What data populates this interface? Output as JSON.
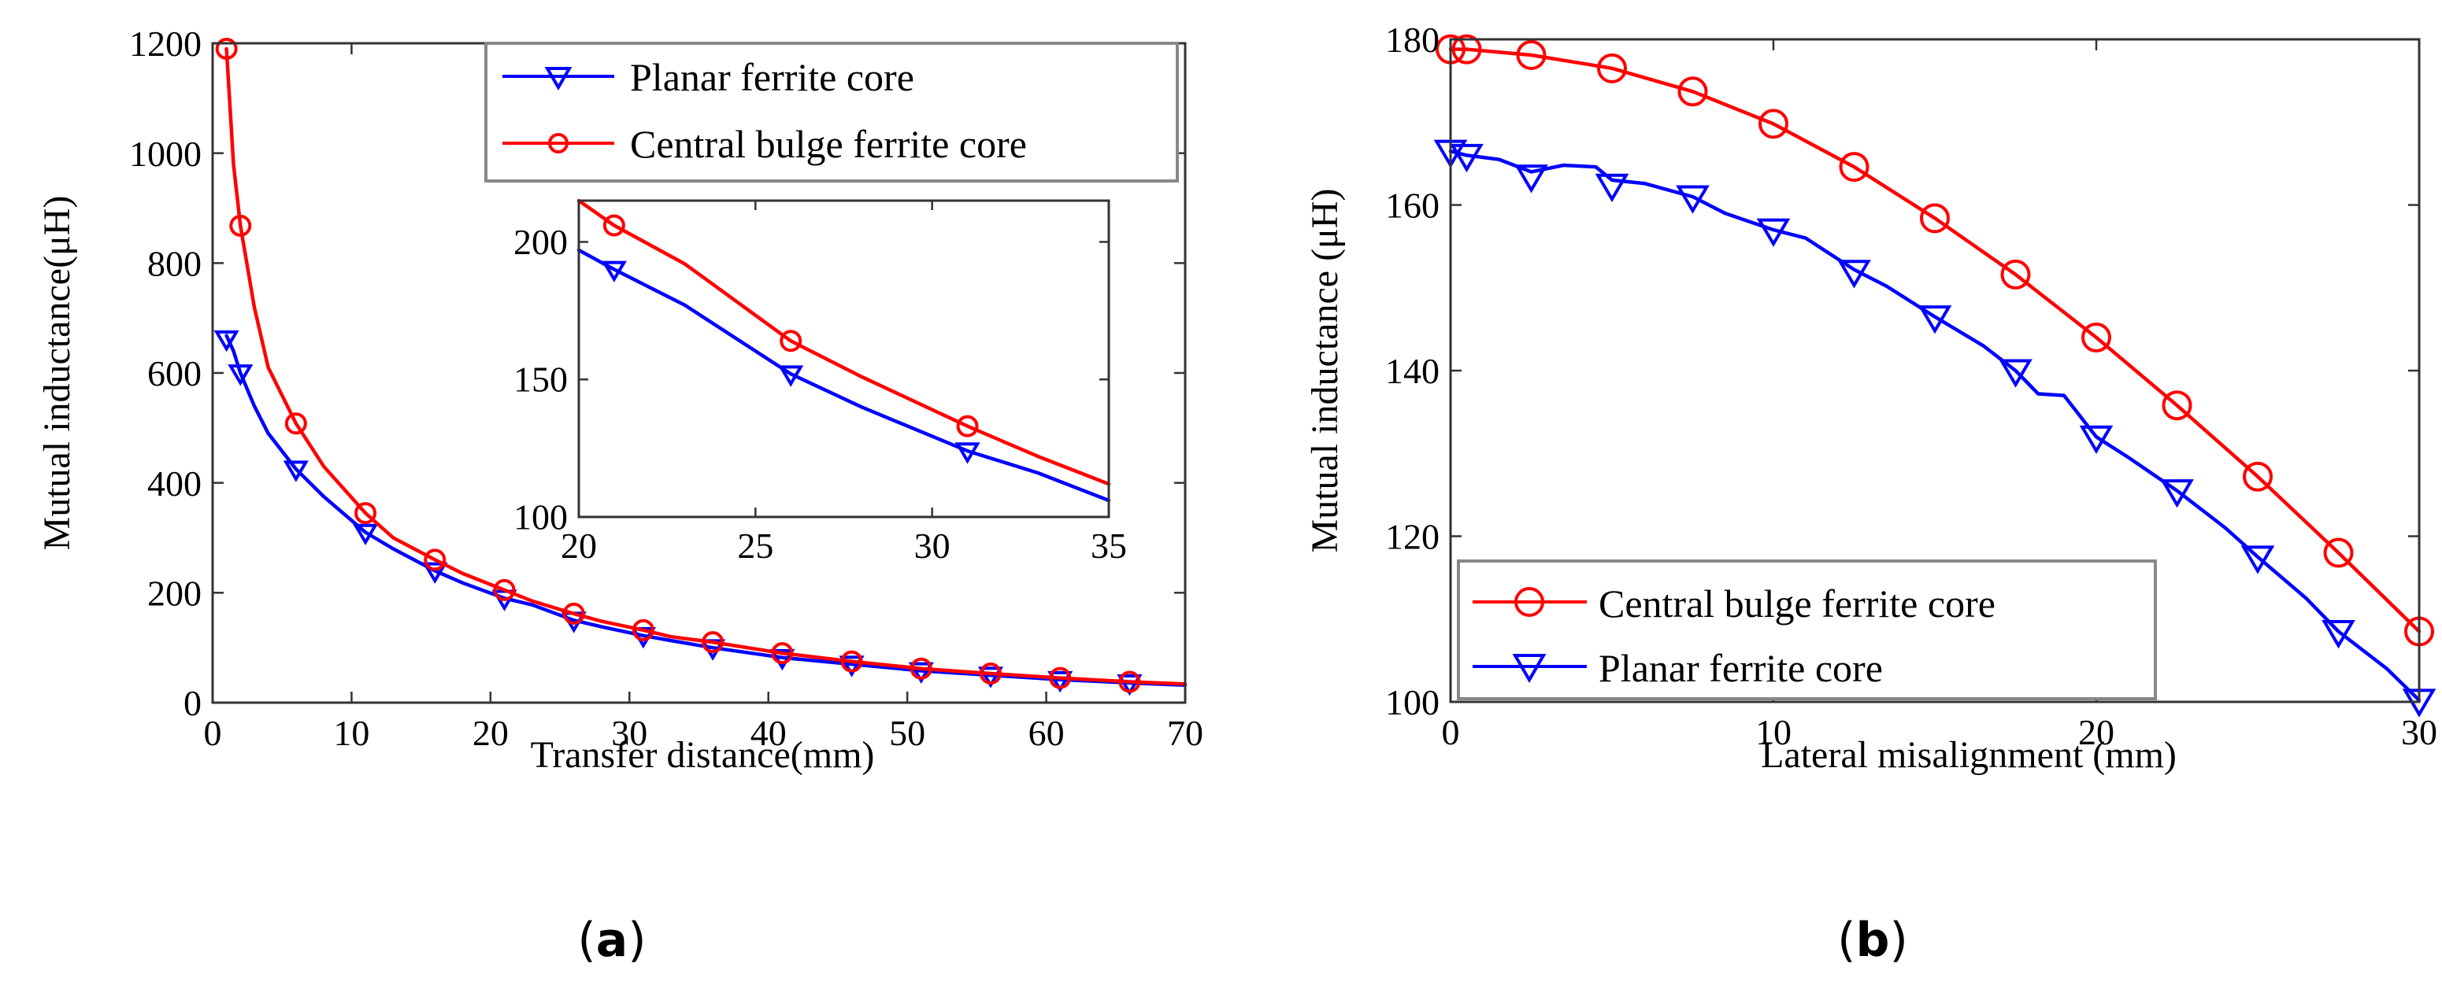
{
  "chart_data": [
    {
      "id": "a",
      "type": "line",
      "caption_letter": "a",
      "xlabel": "Transfer distance(mm)",
      "ylabel": "Mutual inductance(μH)",
      "xlim": [
        0,
        70
      ],
      "ylim": [
        0,
        1200
      ],
      "xticks": [
        0,
        10,
        20,
        30,
        40,
        50,
        60,
        70
      ],
      "yticks": [
        0,
        200,
        400,
        600,
        800,
        1000,
        1200
      ],
      "legend_position": "top-right",
      "series": [
        {
          "name": "Planar ferrite core",
          "color": "#0000ff",
          "marker": "triangle-down",
          "curve": [
            [
              1,
              668
            ],
            [
              1.5,
              640
            ],
            [
              2,
              600
            ],
            [
              3,
              540
            ],
            [
              4,
              490
            ],
            [
              6,
              425
            ],
            [
              8,
              375
            ],
            [
              11,
              310
            ],
            [
              13,
              280
            ],
            [
              16,
              240
            ],
            [
              18,
              218
            ],
            [
              21,
              190
            ],
            [
              23,
              178
            ],
            [
              26,
              150
            ],
            [
              28,
              138
            ],
            [
              31,
              122
            ],
            [
              33,
              113
            ],
            [
              36,
              100
            ],
            [
              41,
              82
            ],
            [
              46,
              70
            ],
            [
              51,
              58
            ],
            [
              56,
              50
            ],
            [
              61,
              42
            ],
            [
              66,
              36
            ],
            [
              70,
              32
            ]
          ],
          "markers": [
            [
              1,
              662
            ],
            [
              2,
              600
            ],
            [
              6,
              425
            ],
            [
              11,
              310
            ],
            [
              16,
              240
            ],
            [
              21,
              190
            ],
            [
              26,
              150
            ],
            [
              31,
              122
            ],
            [
              36,
              100
            ],
            [
              41,
              82
            ],
            [
              46,
              70
            ],
            [
              51,
              58
            ],
            [
              56,
              50
            ],
            [
              61,
              42
            ],
            [
              66,
              36
            ]
          ]
        },
        {
          "name": "Central bulge ferrite core",
          "color": "#ff0000",
          "marker": "circle",
          "curve": [
            [
              1,
              1190
            ],
            [
              1.5,
              980
            ],
            [
              2,
              868
            ],
            [
              3,
              720
            ],
            [
              4,
              610
            ],
            [
              6,
              508
            ],
            [
              8,
              430
            ],
            [
              11,
              345
            ],
            [
              13,
              300
            ],
            [
              16,
              260
            ],
            [
              18,
              235
            ],
            [
              21,
              205
            ],
            [
              23,
              185
            ],
            [
              26,
              162
            ],
            [
              28,
              148
            ],
            [
              31,
              132
            ],
            [
              33,
              120
            ],
            [
              36,
              110
            ],
            [
              41,
              90
            ],
            [
              46,
              75
            ],
            [
              51,
              62
            ],
            [
              56,
              53
            ],
            [
              61,
              45
            ],
            [
              66,
              38
            ],
            [
              70,
              34
            ]
          ],
          "markers": [
            [
              1,
              1190
            ],
            [
              2,
              868
            ],
            [
              6,
              508
            ],
            [
              11,
              345
            ],
            [
              16,
              260
            ],
            [
              21,
              205
            ],
            [
              26,
              162
            ],
            [
              31,
              132
            ],
            [
              36,
              110
            ],
            [
              41,
              90
            ],
            [
              46,
              75
            ],
            [
              51,
              62
            ],
            [
              56,
              53
            ],
            [
              61,
              45
            ],
            [
              66,
              38
            ]
          ]
        }
      ],
      "inset": {
        "xlim": [
          20,
          35
        ],
        "ylim": [
          100,
          215
        ],
        "xticks": [
          20,
          25,
          30,
          35
        ],
        "yticks": [
          100,
          150,
          200
        ],
        "series": [
          {
            "name": "Planar ferrite core",
            "color": "#0000ff",
            "marker": "triangle-down",
            "curve": [
              [
                20,
                197
              ],
              [
                21,
                190
              ],
              [
                23,
                177
              ],
              [
                26,
                152
              ],
              [
                28,
                140
              ],
              [
                31,
                124
              ],
              [
                33,
                116
              ],
              [
                35,
                106
              ]
            ],
            "markers": [
              [
                21,
                190
              ],
              [
                26,
                152
              ],
              [
                31,
                124
              ]
            ]
          },
          {
            "name": "Central bulge ferrite core",
            "color": "#ff0000",
            "marker": "circle",
            "curve": [
              [
                20,
                215
              ],
              [
                21,
                206
              ],
              [
                23,
                192
              ],
              [
                26,
                164
              ],
              [
                28,
                151
              ],
              [
                31,
                133
              ],
              [
                33,
                122
              ],
              [
                35,
                112
              ]
            ],
            "markers": [
              [
                21,
                206
              ],
              [
                26,
                164
              ],
              [
                31,
                133
              ]
            ]
          }
        ]
      }
    },
    {
      "id": "b",
      "type": "line",
      "caption_letter": "b",
      "xlabel": "Lateral misalignment (mm)",
      "ylabel": "Mutual inductance (μH)",
      "xlim": [
        0,
        30
      ],
      "ylim": [
        100,
        180
      ],
      "xticks": [
        0,
        10,
        20,
        30
      ],
      "yticks": [
        100,
        120,
        140,
        160,
        180
      ],
      "legend_position": "bottom-left",
      "series": [
        {
          "name": "Central bulge ferrite core",
          "color": "#ff0000",
          "marker": "circle",
          "curve": [
            [
              0,
              178.8
            ],
            [
              0.5,
              178.8
            ],
            [
              2.5,
              178.1
            ],
            [
              5,
              176.5
            ],
            [
              7.5,
              173.7
            ],
            [
              10,
              169.8
            ],
            [
              12.5,
              164.6
            ],
            [
              15,
              158.4
            ],
            [
              17.5,
              151.6
            ],
            [
              20,
              144
            ],
            [
              22.5,
              135.8
            ],
            [
              25,
              127.2
            ],
            [
              27.5,
              118
            ],
            [
              30,
              108.5
            ]
          ],
          "markers": [
            [
              0,
              178.8
            ],
            [
              0.5,
              178.8
            ],
            [
              2.5,
              178.1
            ],
            [
              5,
              176.5
            ],
            [
              7.5,
              173.7
            ],
            [
              10,
              169.8
            ],
            [
              12.5,
              164.6
            ],
            [
              15,
              158.4
            ],
            [
              17.5,
              151.6
            ],
            [
              20,
              144
            ],
            [
              22.5,
              135.8
            ],
            [
              25,
              127.2
            ],
            [
              27.5,
              118
            ],
            [
              30,
              108.5
            ]
          ]
        },
        {
          "name": "Planar ferrite core",
          "color": "#0000ff",
          "marker": "triangle-down",
          "curve": [
            [
              0,
              166.5
            ],
            [
              0.5,
              166
            ],
            [
              1.5,
              165.5
            ],
            [
              2.5,
              164
            ],
            [
              3.5,
              164.8
            ],
            [
              4.5,
              164.6
            ],
            [
              5,
              163
            ],
            [
              6,
              162.6
            ],
            [
              7.5,
              161
            ],
            [
              8.5,
              159
            ],
            [
              10,
              157
            ],
            [
              11,
              156
            ],
            [
              12.5,
              152.2
            ],
            [
              13.5,
              150.2
            ],
            [
              15,
              146.5
            ],
            [
              16.5,
              143
            ],
            [
              17.5,
              140
            ],
            [
              18.2,
              137.2
            ],
            [
              19,
              137
            ],
            [
              20,
              132
            ],
            [
              21,
              129.5
            ],
            [
              22.5,
              125.5
            ],
            [
              24,
              121
            ],
            [
              25,
              117.5
            ],
            [
              26.5,
              112.5
            ],
            [
              27.5,
              108.5
            ],
            [
              29,
              104
            ],
            [
              30,
              100.2
            ]
          ],
          "markers": [
            [
              0,
              166.5
            ],
            [
              0.5,
              166
            ],
            [
              2.5,
              163.5
            ],
            [
              5,
              162.4
            ],
            [
              7.5,
              161
            ],
            [
              10,
              157
            ],
            [
              12.5,
              152
            ],
            [
              15,
              146.5
            ],
            [
              17.5,
              140
            ],
            [
              20,
              132
            ],
            [
              22.5,
              125.5
            ],
            [
              25,
              117.5
            ],
            [
              27.5,
              108.5
            ],
            [
              30,
              100.2
            ]
          ]
        }
      ]
    }
  ]
}
